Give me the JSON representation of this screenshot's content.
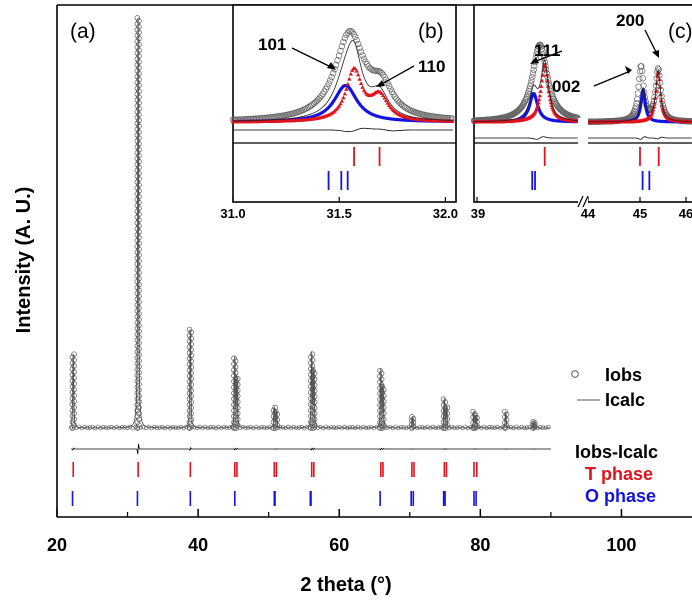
{
  "chart_data": {
    "type": "scatter",
    "main": {
      "panel_label": "(a)",
      "xlabel": "2 theta (°)",
      "ylabel": "Intensity (A. U.)",
      "xlim": [
        20,
        110
      ],
      "x_ticks": [
        20,
        40,
        60,
        80,
        100
      ],
      "x_tick_labels": [
        "20",
        "40",
        "60",
        "80",
        "100"
      ],
      "peaks": [
        {
          "x": 22.3,
          "y": 0.18
        },
        {
          "x": 31.5,
          "y": 1.0
        },
        {
          "x": 38.9,
          "y": 0.24
        },
        {
          "x": 45.2,
          "y": 0.17
        },
        {
          "x": 45.5,
          "y": 0.12
        },
        {
          "x": 50.8,
          "y": 0.05
        },
        {
          "x": 51.1,
          "y": 0.04
        },
        {
          "x": 56.1,
          "y": 0.18
        },
        {
          "x": 56.4,
          "y": 0.14
        },
        {
          "x": 65.9,
          "y": 0.14
        },
        {
          "x": 66.2,
          "y": 0.1
        },
        {
          "x": 70.4,
          "y": 0.027
        },
        {
          "x": 74.9,
          "y": 0.07
        },
        {
          "x": 75.2,
          "y": 0.05
        },
        {
          "x": 79.1,
          "y": 0.04
        },
        {
          "x": 79.4,
          "y": 0.03
        },
        {
          "x": 83.6,
          "y": 0.04
        },
        {
          "x": 87.6,
          "y": 0.015
        }
      ],
      "t_phase_ticks": [
        22.3,
        31.5,
        38.9,
        45.2,
        45.5,
        50.8,
        51.1,
        56.1,
        56.4,
        65.9,
        66.2,
        70.3,
        70.6,
        74.9,
        75.2,
        79.1,
        79.5
      ],
      "o_phase_ticks": [
        22.2,
        31.4,
        38.9,
        45.2,
        50.8,
        50.9,
        55.9,
        56.0,
        65.8,
        70.2,
        70.5,
        74.8,
        75.0,
        79.1,
        79.4
      ],
      "legend": [
        {
          "label": "Iobs",
          "symbol": "circle",
          "color": "#555555"
        },
        {
          "label": "Icalc",
          "symbol": "line",
          "color": "#555555"
        },
        {
          "label": "Iobs-Icalc",
          "symbol": "none",
          "color": "#000000"
        },
        {
          "label": "T phase",
          "symbol": "none",
          "color": "#e0141e"
        },
        {
          "label": "O phase",
          "symbol": "none",
          "color": "#1414e0"
        }
      ]
    },
    "inset_b": {
      "panel_label": "(b)",
      "xlim": [
        31.0,
        32.05
      ],
      "x_ticks": [
        31.0,
        31.5,
        32.0
      ],
      "x_tick_labels": [
        "31.0",
        "31.5",
        "32.0"
      ],
      "annotations": [
        "101",
        "110"
      ],
      "obs_peaks": [
        {
          "x": 31.55,
          "y": 1.0,
          "w": 0.085
        },
        {
          "x": 31.7,
          "y": 0.32,
          "w": 0.06
        }
      ],
      "t_peaks": [
        {
          "x": 31.57,
          "y": 0.58,
          "w": 0.045
        },
        {
          "x": 31.69,
          "y": 0.28,
          "w": 0.05
        }
      ],
      "o_peaks": [
        {
          "x": 31.53,
          "y": 0.42,
          "w": 0.065
        }
      ],
      "t_ticks": [
        31.57,
        31.69
      ],
      "o_ticks": [
        31.45,
        31.51,
        31.54
      ]
    },
    "inset_c": {
      "panel_label": "(c)",
      "x_tick_labels": [
        "39",
        "44",
        "45",
        "46"
      ],
      "annotations": [
        "111",
        "200",
        "002"
      ],
      "left": {
        "xlim": [
          39.0,
          40.5
        ],
        "obs_peaks": [
          {
            "x": 39.95,
            "y": 0.92,
            "w": 0.13
          }
        ],
        "t_peaks": [
          {
            "x": 40.02,
            "y": 0.68,
            "w": 0.065
          }
        ],
        "o_peaks": [
          {
            "x": 39.86,
            "y": 0.34,
            "w": 0.07
          }
        ],
        "t_ticks": [
          40.02
        ],
        "o_ticks": [
          39.84,
          39.88
        ]
      },
      "right": {
        "xlim": [
          44.0,
          46.0
        ],
        "obs_peaks": [
          {
            "x": 45.02,
            "y": 0.65,
            "w": 0.06
          },
          {
            "x": 45.35,
            "y": 0.62,
            "w": 0.06
          }
        ],
        "t_peaks": [
          {
            "x": 45.35,
            "y": 0.6,
            "w": 0.055
          }
        ],
        "o_peaks": [
          {
            "x": 45.06,
            "y": 0.38,
            "w": 0.05
          }
        ],
        "t_ticks": [
          45.0,
          45.36
        ],
        "o_ticks": [
          45.05,
          45.18
        ]
      }
    }
  }
}
